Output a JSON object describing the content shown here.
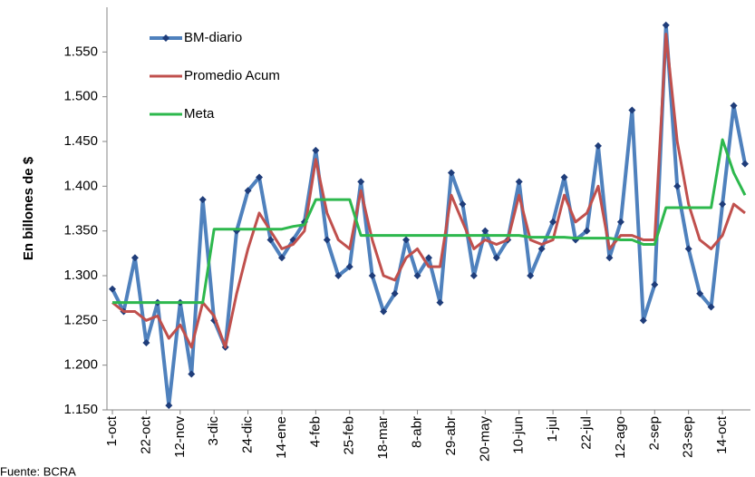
{
  "chart_data": {
    "type": "line",
    "y_label": "En billones de $",
    "source": "Fuente: BCRA",
    "legend": "upper left",
    "categories": [
      "1-oct",
      null,
      null,
      "22-oct",
      null,
      null,
      "12-nov",
      null,
      null,
      "3-dic",
      null,
      null,
      "24-dic",
      null,
      null,
      "14-ene",
      null,
      null,
      "4-feb",
      null,
      null,
      "25-feb",
      null,
      null,
      "18-mar",
      null,
      null,
      "8-abr",
      null,
      null,
      "29-abr",
      null,
      null,
      "20-may",
      null,
      null,
      "10-jun",
      null,
      null,
      "1-jul",
      null,
      null,
      "22-jul",
      null,
      null,
      "12-ago",
      null,
      null,
      "2-sep",
      null,
      null,
      "23-sep",
      null,
      null,
      "14-oct",
      null,
      null
    ],
    "series": [
      {
        "name": "BM-diario",
        "color": "#4f81bd",
        "marker": "diamond",
        "marker_color": "#1f3d7a",
        "values": [
          1.285,
          1.26,
          1.32,
          1.225,
          1.27,
          1.155,
          1.27,
          1.19,
          1.385,
          1.25,
          1.22,
          1.35,
          1.395,
          1.41,
          1.34,
          1.32,
          1.34,
          1.36,
          1.44,
          1.34,
          1.3,
          1.31,
          1.405,
          1.3,
          1.26,
          1.28,
          1.34,
          1.3,
          1.32,
          1.27,
          1.415,
          1.38,
          1.3,
          1.35,
          1.32,
          1.34,
          1.405,
          1.3,
          1.33,
          1.36,
          1.41,
          1.34,
          1.35,
          1.445,
          1.32,
          1.36,
          1.485,
          1.25,
          1.29,
          1.58,
          1.4,
          1.33,
          1.28,
          1.265,
          1.38,
          1.49,
          1.425
        ]
      },
      {
        "name": "Promedio Acum",
        "color": "#c0504d",
        "values": [
          1.27,
          1.26,
          1.26,
          1.25,
          1.255,
          1.23,
          1.245,
          1.22,
          1.27,
          1.255,
          1.22,
          1.28,
          1.33,
          1.37,
          1.35,
          1.33,
          1.335,
          1.35,
          1.43,
          1.37,
          1.34,
          1.33,
          1.395,
          1.34,
          1.3,
          1.295,
          1.32,
          1.33,
          1.31,
          1.31,
          1.39,
          1.36,
          1.33,
          1.34,
          1.335,
          1.34,
          1.39,
          1.34,
          1.335,
          1.34,
          1.39,
          1.36,
          1.37,
          1.4,
          1.33,
          1.345,
          1.345,
          1.34,
          1.34,
          1.57,
          1.45,
          1.38,
          1.34,
          1.33,
          1.345,
          1.38,
          1.37
        ]
      },
      {
        "name": "Meta",
        "color": "#2db84d",
        "values": [
          1.27,
          1.27,
          1.27,
          1.27,
          1.27,
          1.27,
          1.27,
          1.27,
          1.27,
          1.352,
          1.352,
          1.352,
          1.352,
          1.352,
          1.352,
          1.352,
          1.355,
          1.357,
          1.385,
          1.385,
          1.385,
          1.385,
          1.345,
          1.345,
          1.345,
          1.345,
          1.345,
          1.345,
          1.345,
          1.345,
          1.345,
          1.345,
          1.345,
          1.345,
          1.345,
          1.345,
          1.345,
          1.343,
          1.343,
          1.343,
          1.343,
          1.342,
          1.342,
          1.342,
          1.342,
          1.34,
          1.34,
          1.335,
          1.335,
          1.376,
          1.376,
          1.376,
          1.376,
          1.376,
          1.452,
          1.415,
          1.39
        ]
      }
    ],
    "ylim": [
      1.15,
      1.6
    ],
    "yticks": [
      {
        "value": 1.15,
        "label": "1.150"
      },
      {
        "value": 1.2,
        "label": "1.200"
      },
      {
        "value": 1.25,
        "label": "1.250"
      },
      {
        "value": 1.3,
        "label": "1.300"
      },
      {
        "value": 1.35,
        "label": "1.350"
      },
      {
        "value": 1.4,
        "label": "1.400"
      },
      {
        "value": 1.45,
        "label": "1.450"
      },
      {
        "value": 1.5,
        "label": "1.500"
      },
      {
        "value": 1.55,
        "label": "1.550"
      }
    ],
    "grid": false
  }
}
